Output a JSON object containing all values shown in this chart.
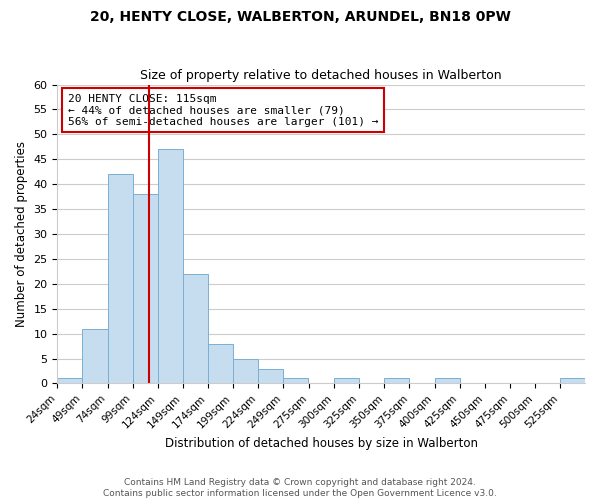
{
  "title": "20, HENTY CLOSE, WALBERTON, ARUNDEL, BN18 0PW",
  "subtitle": "Size of property relative to detached houses in Walberton",
  "xlabel": "Distribution of detached houses by size in Walberton",
  "ylabel": "Number of detached properties",
  "bar_color": "#c6dcef",
  "bar_edge_color": "#7aafd4",
  "bin_starts": [
    24,
    49,
    74,
    99,
    124,
    149,
    174,
    199,
    224,
    249,
    275,
    300,
    325,
    350,
    375,
    400,
    425,
    450,
    475,
    500,
    525
  ],
  "bin_width": 25,
  "bin_labels": [
    "24sqm",
    "49sqm",
    "74sqm",
    "99sqm",
    "124sqm",
    "149sqm",
    "174sqm",
    "199sqm",
    "224sqm",
    "249sqm",
    "275sqm",
    "300sqm",
    "325sqm",
    "350sqm",
    "375sqm",
    "400sqm",
    "425sqm",
    "450sqm",
    "475sqm",
    "500sqm",
    "525sqm"
  ],
  "counts": [
    1,
    11,
    42,
    38,
    47,
    22,
    8,
    5,
    3,
    1,
    0,
    1,
    0,
    1,
    0,
    1,
    0,
    0,
    0,
    0,
    1
  ],
  "vline_x": 115,
  "vline_color": "#cc0000",
  "ylim": [
    0,
    60
  ],
  "yticks": [
    0,
    5,
    10,
    15,
    20,
    25,
    30,
    35,
    40,
    45,
    50,
    55,
    60
  ],
  "annotation_title": "20 HENTY CLOSE: 115sqm",
  "annotation_line1": "← 44% of detached houses are smaller (79)",
  "annotation_line2": "56% of semi-detached houses are larger (101) →",
  "annotation_box_color": "#ffffff",
  "annotation_box_edge": "#cc0000",
  "footer_line1": "Contains HM Land Registry data © Crown copyright and database right 2024.",
  "footer_line2": "Contains public sector information licensed under the Open Government Licence v3.0.",
  "background_color": "#ffffff",
  "grid_color": "#cccccc"
}
